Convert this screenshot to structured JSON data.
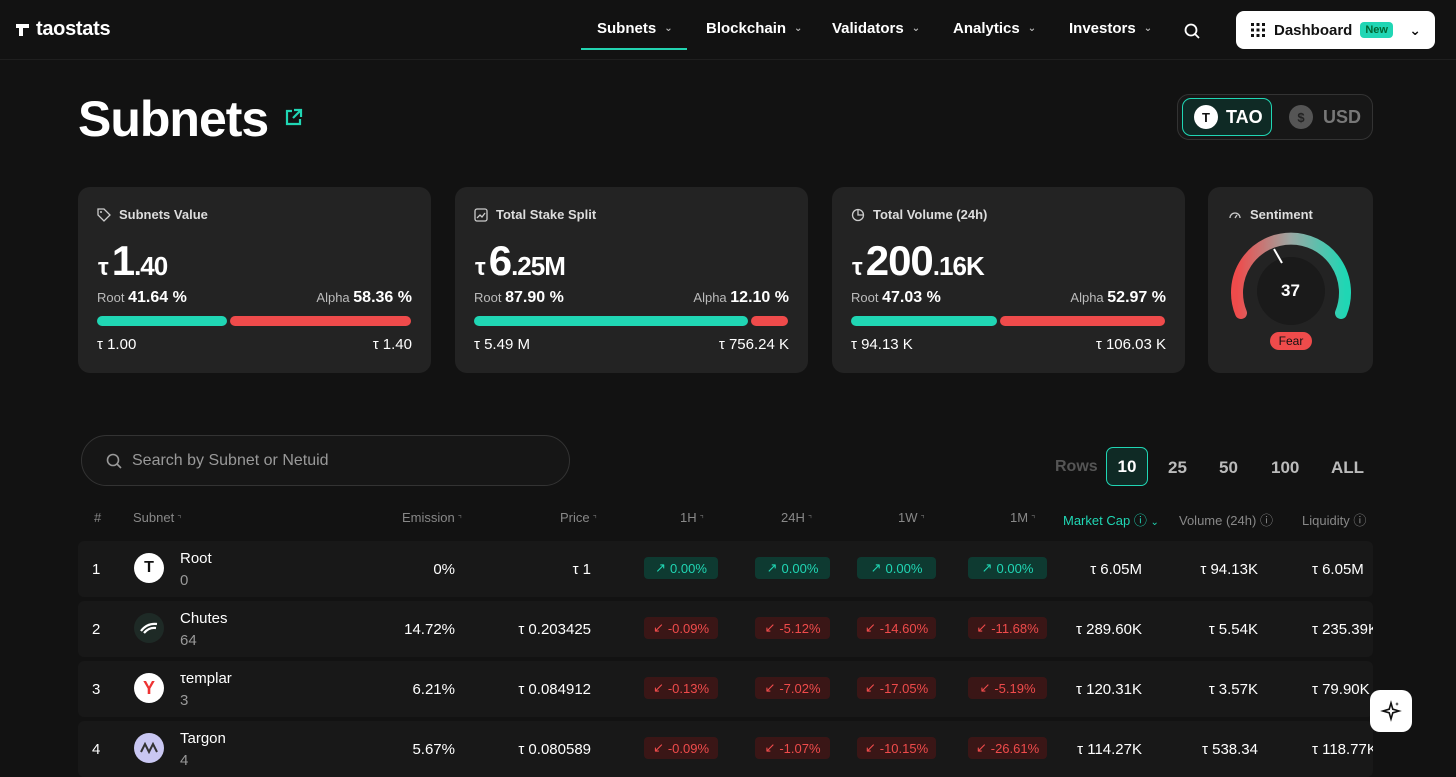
{
  "nav": {
    "logo": "taostats",
    "items": [
      "Subnets",
      "Blockchain",
      "Validators",
      "Analytics",
      "Investors"
    ],
    "dashboard_label": "Dashboard",
    "dashboard_badge": "New"
  },
  "page": {
    "title": "Subnets",
    "currency_tao": "TAO",
    "currency_usd": "USD"
  },
  "cards": [
    {
      "title": "Subnets Value",
      "big_int": "1",
      "big_dec": ".40",
      "root_label": "Root",
      "root_pct": "41.64 %",
      "alpha_label": "Alpha",
      "alpha_pct": "58.36 %",
      "root_val": "1.00",
      "alpha_val": "1.40",
      "root_frac": 0.4164
    },
    {
      "title": "Total Stake Split",
      "big_int": "6",
      "big_dec": ".25M",
      "root_label": "Root",
      "root_pct": "87.90 %",
      "alpha_label": "Alpha",
      "alpha_pct": "12.10 %",
      "root_val": "5.49 M",
      "alpha_val": "756.24 K",
      "root_frac": 0.879
    },
    {
      "title": "Total Volume (24h)",
      "big_int": "200",
      "big_dec": ".16K",
      "root_label": "Root",
      "root_pct": "47.03 %",
      "alpha_label": "Alpha",
      "alpha_pct": "52.97 %",
      "root_val": "94.13 K",
      "alpha_val": "106.03 K",
      "root_frac": 0.4703
    }
  ],
  "sentiment": {
    "title": "Sentiment",
    "value": "37",
    "label": "Fear"
  },
  "search": {
    "placeholder": "Search by Subnet or Netuid"
  },
  "rows": {
    "label": "Rows",
    "options": [
      "10",
      "25",
      "50",
      "100",
      "ALL"
    ],
    "selected": "10"
  },
  "table": {
    "headers": {
      "idx": "#",
      "subnet": "Subnet",
      "emission": "Emission",
      "price": "Price",
      "h1": "1H",
      "h24": "24H",
      "w1": "1W",
      "m1": "1M",
      "mcap": "Market Cap",
      "vol": "Volume (24h)",
      "liq": "Liquidity"
    },
    "rows": [
      {
        "idx": "1",
        "name": "Root",
        "netuid": "0",
        "emission": "0%",
        "price": "τ 1",
        "h1": "0.00%",
        "h24": "0.00%",
        "w1": "0.00%",
        "m1": "0.00%",
        "mcap": "τ 6.05M",
        "vol": "τ 94.13K",
        "liq": "τ 6.05M"
      },
      {
        "idx": "2",
        "name": "Chutes",
        "netuid": "64",
        "emission": "14.72%",
        "price": "τ 0.203425",
        "h1": "-0.09%",
        "h24": "-5.12%",
        "w1": "-14.60%",
        "m1": "-11.68%",
        "mcap": "τ 289.60K",
        "vol": "τ 5.54K",
        "liq": "τ 235.39K"
      },
      {
        "idx": "3",
        "name": "τemplar",
        "netuid": "3",
        "emission": "6.21%",
        "price": "τ 0.084912",
        "h1": "-0.13%",
        "h24": "-7.02%",
        "w1": "-17.05%",
        "m1": "-5.19%",
        "mcap": "τ 120.31K",
        "vol": "τ 3.57K",
        "liq": "τ 79.90K"
      },
      {
        "idx": "4",
        "name": "Targon",
        "netuid": "4",
        "emission": "5.67%",
        "price": "τ 0.080589",
        "h1": "-0.09%",
        "h24": "-1.07%",
        "w1": "-10.15%",
        "m1": "-26.61%",
        "mcap": "τ 114.27K",
        "vol": "τ 538.34",
        "liq": "τ 118.77K"
      }
    ]
  },
  "colors": {
    "accent": "#20d6b4",
    "negative": "#ef4b4b",
    "bg": "#121212",
    "card": "#232323"
  }
}
